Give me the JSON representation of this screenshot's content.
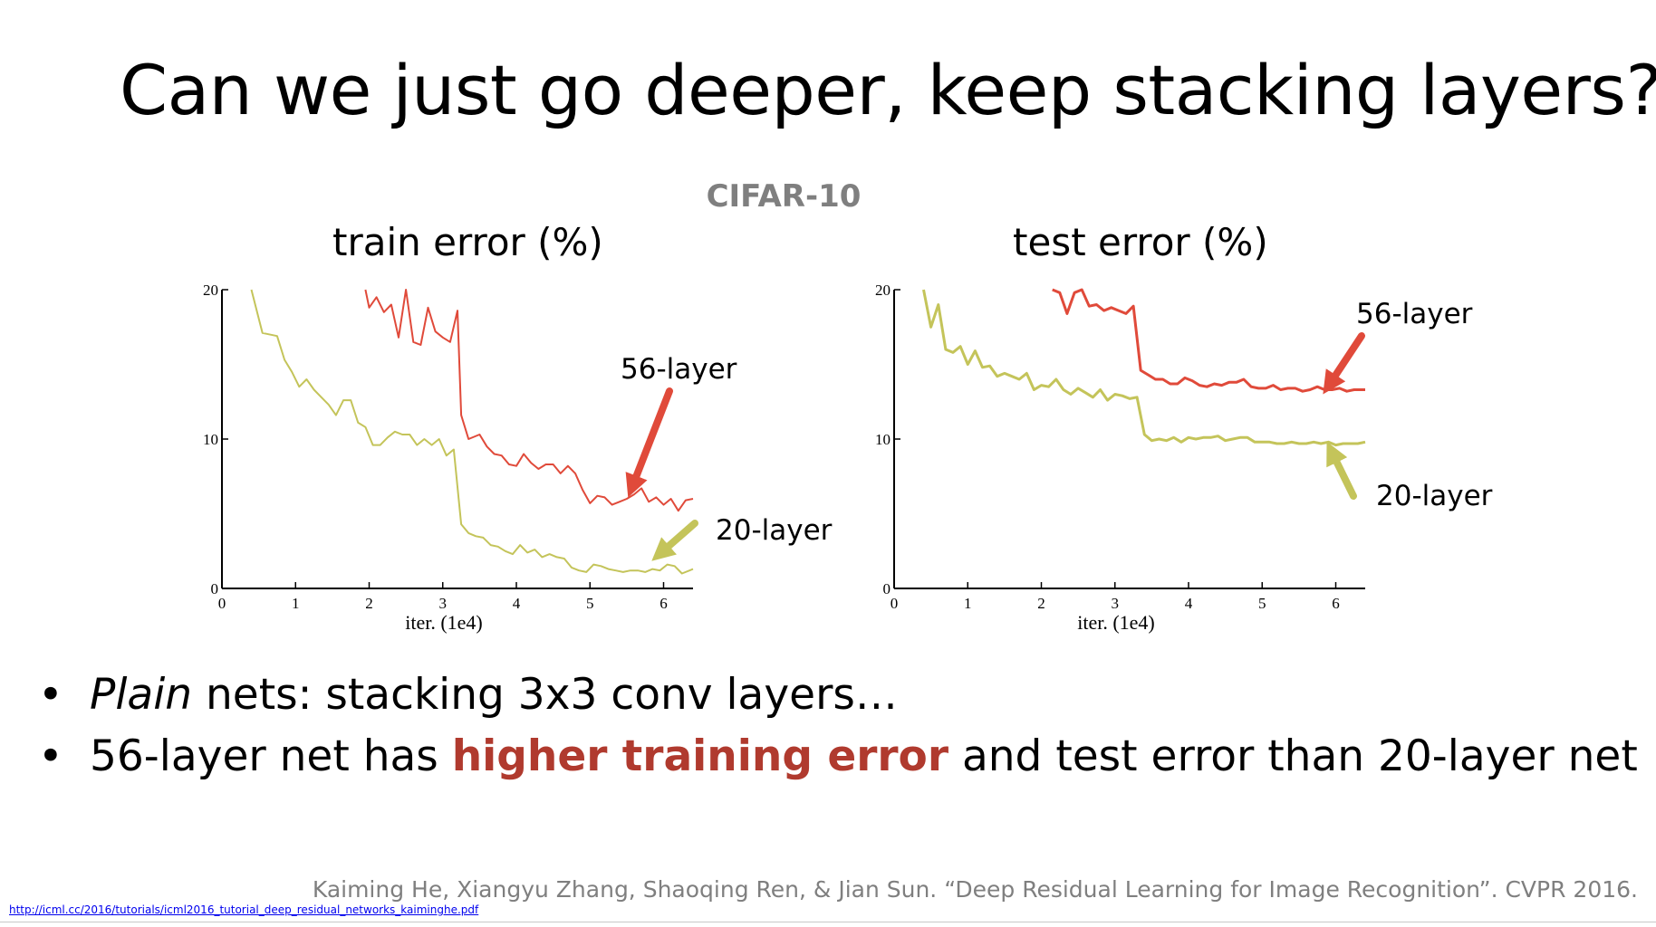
{
  "slide": {
    "title": "Can we just go deeper, keep stacking layers?",
    "dataset_label": "CIFAR-10",
    "bullets": [
      {
        "parts": [
          {
            "text": "Plain",
            "style": "italic"
          },
          {
            "text": " nets: stacking 3x3 conv layers…",
            "style": "normal"
          }
        ]
      },
      {
        "parts": [
          {
            "text": "56-layer net has ",
            "style": "normal"
          },
          {
            "text": "higher training error",
            "style": "red-bold"
          },
          {
            "text": " and test error than 20-layer net",
            "style": "normal"
          }
        ]
      }
    ],
    "bullet_symbol": "•",
    "citation": "Kaiming He, Xiangyu Zhang, Shaoqing  Ren, & Jian Sun. “Deep Residual Learning for Image Recognition”. CVPR 2016.",
    "source_link": "http://icml.cc/2016/tutorials/icml2016_tutorial_deep_residual_networks_kaiminghe.pdf"
  },
  "colors": {
    "layer56": "#e04a3a",
    "layer20": "#c4c45a",
    "emphasis": "#b03a2e",
    "gray_text": "#7f7f7f"
  },
  "chart_data": [
    {
      "type": "line",
      "title": "train error (%)",
      "xlabel": "iter. (1e4)",
      "ylabel": "",
      "xlim": [
        0,
        6.4
      ],
      "ylim": [
        0,
        20
      ],
      "xticks": [
        "0",
        "1",
        "2",
        "3",
        "4",
        "5",
        "6"
      ],
      "yticks": [
        "0",
        "10",
        "20"
      ],
      "grid": false,
      "series": [
        {
          "name": "56-layer",
          "color": "#e04a3a",
          "x": [
            1.95,
            2.0,
            2.1,
            2.2,
            2.3,
            2.4,
            2.5,
            2.6,
            2.7,
            2.8,
            2.9,
            3.0,
            3.1,
            3.2,
            3.25,
            3.35,
            3.5,
            3.6,
            3.7,
            3.8,
            3.9,
            4.0,
            4.1,
            4.2,
            4.3,
            4.4,
            4.5,
            4.6,
            4.7,
            4.8,
            4.9,
            5.0,
            5.1,
            5.2,
            5.3,
            5.4,
            5.5,
            5.6,
            5.7,
            5.8,
            5.9,
            6.0,
            6.1,
            6.2,
            6.3,
            6.4
          ],
          "y": [
            20.0,
            18.8,
            19.5,
            18.5,
            19.0,
            16.8,
            20.0,
            16.5,
            16.3,
            18.8,
            17.2,
            16.8,
            16.5,
            18.6,
            11.6,
            10.0,
            10.3,
            9.5,
            9.0,
            8.9,
            8.3,
            8.2,
            9.0,
            8.4,
            8.0,
            8.3,
            8.3,
            7.7,
            8.2,
            7.7,
            6.6,
            5.7,
            6.2,
            6.1,
            5.6,
            5.8,
            6.0,
            6.3,
            6.7,
            5.8,
            6.1,
            5.6,
            6.0,
            5.2,
            5.9,
            6.0
          ]
        },
        {
          "name": "20-layer",
          "color": "#c4c45a",
          "x": [
            0.4,
            0.55,
            0.75,
            0.85,
            0.95,
            1.05,
            1.15,
            1.25,
            1.35,
            1.45,
            1.55,
            1.65,
            1.75,
            1.85,
            1.95,
            2.05,
            2.15,
            2.25,
            2.35,
            2.45,
            2.55,
            2.65,
            2.75,
            2.85,
            2.95,
            3.05,
            3.15,
            3.25,
            3.35,
            3.45,
            3.55,
            3.65,
            3.75,
            3.85,
            3.95,
            4.05,
            4.15,
            4.25,
            4.35,
            4.45,
            4.55,
            4.65,
            4.75,
            4.85,
            4.95,
            5.05,
            5.15,
            5.25,
            5.35,
            5.45,
            5.55,
            5.65,
            5.75,
            5.85,
            5.95,
            6.05,
            6.15,
            6.25,
            6.4
          ],
          "y": [
            20.0,
            17.1,
            16.9,
            15.3,
            14.5,
            13.5,
            14.0,
            13.3,
            12.8,
            12.3,
            11.6,
            12.6,
            12.6,
            11.1,
            10.8,
            9.6,
            9.6,
            10.1,
            10.5,
            10.3,
            10.3,
            9.6,
            10.0,
            9.6,
            10.0,
            8.9,
            9.3,
            4.3,
            3.7,
            3.5,
            3.4,
            2.9,
            2.8,
            2.5,
            2.3,
            2.9,
            2.4,
            2.6,
            2.1,
            2.3,
            2.1,
            2.0,
            1.4,
            1.2,
            1.1,
            1.6,
            1.5,
            1.3,
            1.2,
            1.1,
            1.2,
            1.2,
            1.1,
            1.3,
            1.2,
            1.6,
            1.5,
            1.0,
            1.3
          ]
        }
      ],
      "annotations": [
        {
          "text": "56-layer",
          "series": "56-layer"
        },
        {
          "text": "20-layer",
          "series": "20-layer"
        }
      ]
    },
    {
      "type": "line",
      "title": "test error (%)",
      "xlabel": "iter. (1e4)",
      "ylabel": "",
      "xlim": [
        0,
        6.4
      ],
      "ylim": [
        0,
        20
      ],
      "xticks": [
        "0",
        "1",
        "2",
        "3",
        "4",
        "5",
        "6"
      ],
      "yticks": [
        "0",
        "10",
        "20"
      ],
      "grid": false,
      "series": [
        {
          "name": "56-layer",
          "color": "#e04a3a",
          "x": [
            2.15,
            2.25,
            2.35,
            2.45,
            2.55,
            2.65,
            2.75,
            2.85,
            2.95,
            3.05,
            3.15,
            3.25,
            3.35,
            3.45,
            3.55,
            3.65,
            3.75,
            3.85,
            3.95,
            4.05,
            4.15,
            4.25,
            4.35,
            4.45,
            4.55,
            4.65,
            4.75,
            4.85,
            4.95,
            5.05,
            5.15,
            5.25,
            5.35,
            5.45,
            5.55,
            5.65,
            5.75,
            5.85,
            5.95,
            6.05,
            6.15,
            6.25,
            6.4
          ],
          "y": [
            20.0,
            19.8,
            18.4,
            19.8,
            20.0,
            18.9,
            19.0,
            18.6,
            18.8,
            18.6,
            18.4,
            18.9,
            14.6,
            14.3,
            14.0,
            14.0,
            13.7,
            13.7,
            14.1,
            13.9,
            13.6,
            13.5,
            13.7,
            13.6,
            13.8,
            13.8,
            14.0,
            13.5,
            13.4,
            13.4,
            13.6,
            13.3,
            13.4,
            13.4,
            13.2,
            13.3,
            13.5,
            13.3,
            13.3,
            13.4,
            13.2,
            13.3,
            13.3
          ]
        },
        {
          "name": "20-layer",
          "color": "#c4c45a",
          "x": [
            0.4,
            0.5,
            0.6,
            0.7,
            0.8,
            0.9,
            1.0,
            1.1,
            1.2,
            1.3,
            1.4,
            1.5,
            1.6,
            1.7,
            1.8,
            1.9,
            2.0,
            2.1,
            2.2,
            2.3,
            2.4,
            2.5,
            2.6,
            2.7,
            2.8,
            2.9,
            3.0,
            3.1,
            3.2,
            3.3,
            3.4,
            3.5,
            3.6,
            3.7,
            3.8,
            3.9,
            4.0,
            4.1,
            4.2,
            4.3,
            4.4,
            4.5,
            4.6,
            4.7,
            4.8,
            4.9,
            5.0,
            5.1,
            5.2,
            5.3,
            5.4,
            5.5,
            5.6,
            5.7,
            5.8,
            5.9,
            6.0,
            6.1,
            6.2,
            6.3,
            6.4
          ],
          "y": [
            20.0,
            17.5,
            19.0,
            16.0,
            15.8,
            16.2,
            15.0,
            15.9,
            14.8,
            14.9,
            14.2,
            14.4,
            14.2,
            14.0,
            14.4,
            13.3,
            13.6,
            13.5,
            14.0,
            13.3,
            13.0,
            13.4,
            13.1,
            12.8,
            13.3,
            12.6,
            13.0,
            12.9,
            12.7,
            12.8,
            10.3,
            9.9,
            10.0,
            9.9,
            10.1,
            9.8,
            10.1,
            10.0,
            10.1,
            10.1,
            10.2,
            9.9,
            10.0,
            10.1,
            10.1,
            9.8,
            9.8,
            9.8,
            9.7,
            9.7,
            9.8,
            9.7,
            9.7,
            9.8,
            9.7,
            9.8,
            9.6,
            9.7,
            9.7,
            9.7,
            9.8
          ]
        }
      ],
      "annotations": [
        {
          "text": "56-layer",
          "series": "56-layer"
        },
        {
          "text": "20-layer",
          "series": "20-layer"
        }
      ]
    }
  ]
}
